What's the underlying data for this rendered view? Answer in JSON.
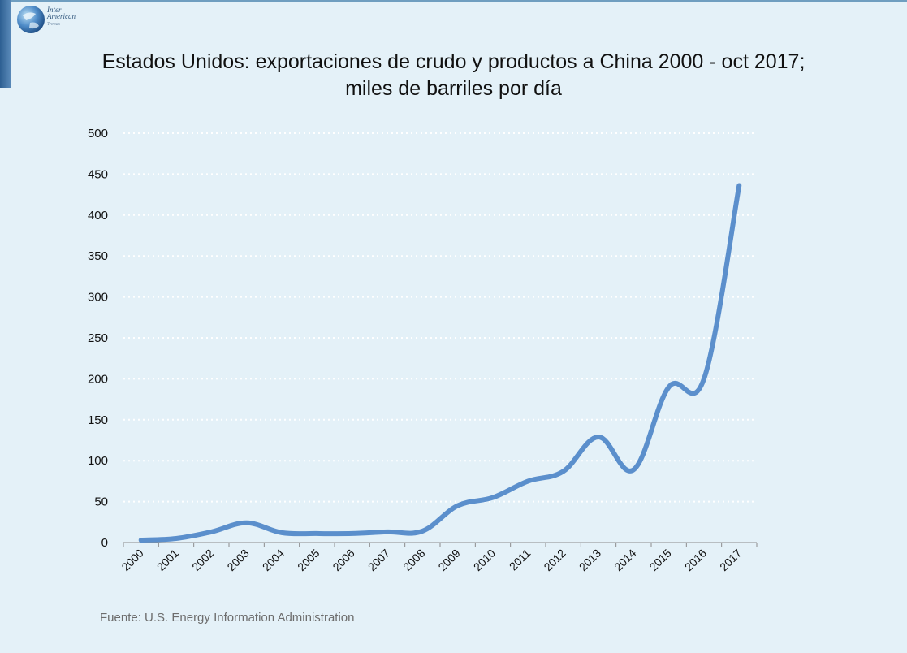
{
  "logo": {
    "line1": "Inter",
    "line2": "American",
    "line3": "Trends"
  },
  "title": {
    "line1": "Estados Unidos: exportaciones de crudo y productos a China 2000 - oct 2017;",
    "line2": "miles de barriles por día"
  },
  "source": "Fuente: U.S. Energy Information Administration",
  "colors": {
    "background": "#e4f1f8",
    "line": "#5b8fcc",
    "grid": "#ffffff",
    "axis": "#8c8c8c"
  },
  "chart_data": {
    "type": "line",
    "categories": [
      "2000",
      "2001",
      "2002",
      "2003",
      "2004",
      "2005",
      "2006",
      "2007",
      "2008",
      "2009",
      "2010",
      "2011",
      "2012",
      "2013",
      "2014",
      "2015",
      "2016",
      "2017"
    ],
    "series": [
      {
        "values": [
          3,
          5,
          13,
          24,
          12,
          11,
          11,
          13,
          14,
          45,
          55,
          75,
          87,
          129,
          89,
          190,
          200,
          436
        ]
      }
    ],
    "yticks": [
      "0",
      "50",
      "100",
      "150",
      "200",
      "250",
      "300",
      "350",
      "400",
      "450",
      "500"
    ],
    "ylim": [
      0,
      500
    ],
    "grid": true,
    "grid_style": "dotted",
    "legend": false
  }
}
